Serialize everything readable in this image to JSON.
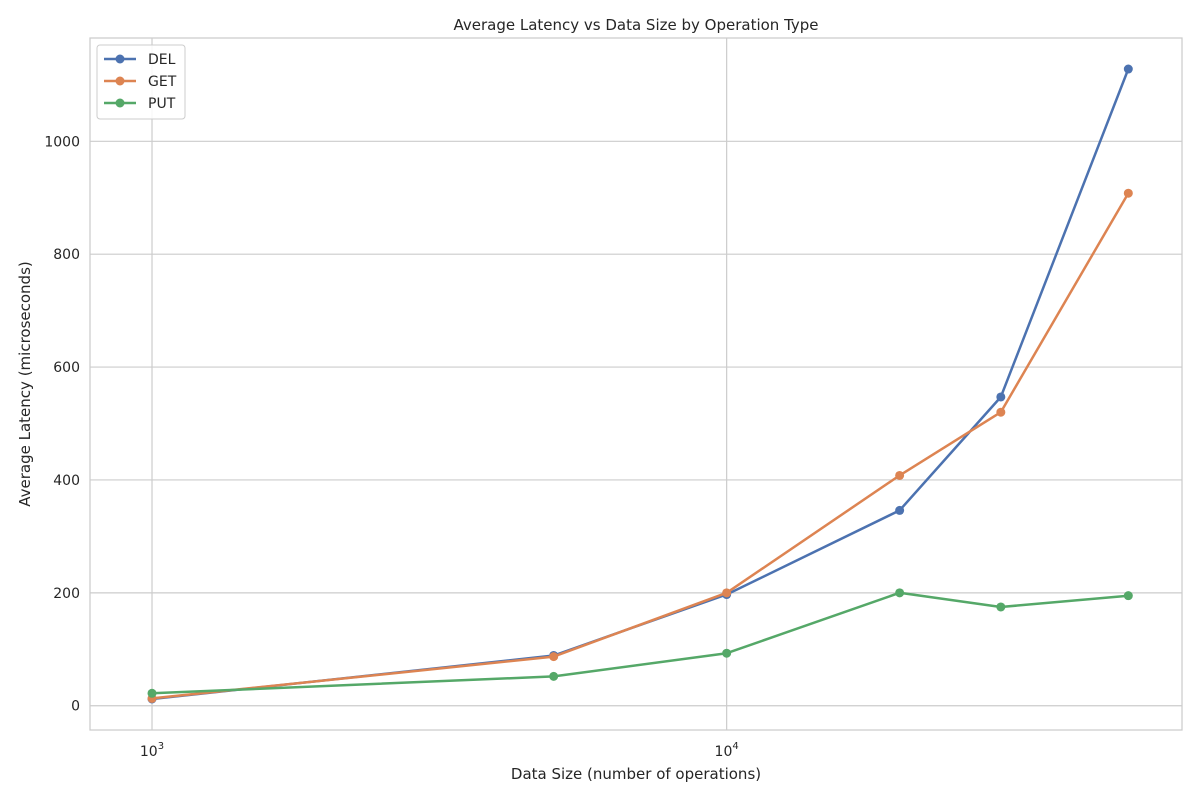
{
  "chart_data": {
    "type": "line",
    "title": "Average Latency vs Data Size by Operation Type",
    "xlabel": "Data Size (number of operations)",
    "ylabel": "Average Latency (microseconds)",
    "x_scale": "log",
    "x": [
      1000,
      5000,
      10000,
      20000,
      30000,
      50000
    ],
    "xlim": [
      780,
      62000
    ],
    "ylim": [
      -43,
      1183
    ],
    "x_ticks": [
      {
        "value": 1000,
        "base": "10",
        "exp": "3"
      },
      {
        "value": 10000,
        "base": "10",
        "exp": "4"
      }
    ],
    "y_ticks": [
      0,
      200,
      400,
      600,
      800,
      1000
    ],
    "grid": true,
    "legend_position": "top-left",
    "series": [
      {
        "name": "DEL",
        "color": "#4c72b0",
        "values": [
          12,
          89,
          197,
          346,
          547,
          1128
        ]
      },
      {
        "name": "GET",
        "color": "#dd8452",
        "values": [
          13,
          87,
          200,
          408,
          520,
          908
        ]
      },
      {
        "name": "PUT",
        "color": "#55a868",
        "values": [
          22,
          52,
          93,
          200,
          175,
          195
        ]
      }
    ]
  }
}
